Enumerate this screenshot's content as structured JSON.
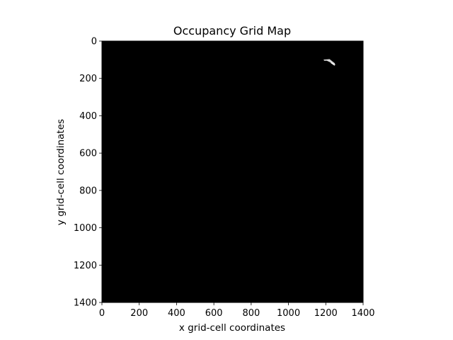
{
  "chart_data": {
    "type": "heatmap",
    "title": "Occupancy Grid Map",
    "xlabel": "x grid-cell coordinates",
    "ylabel": "y grid-cell coordinates",
    "xlim": [
      0,
      1400
    ],
    "ylim": [
      1400,
      0
    ],
    "y_axis_inverted": true,
    "x_ticks": [
      "0",
      "200",
      "400",
      "600",
      "800",
      "1000",
      "1200",
      "1400"
    ],
    "y_ticks": [
      "0",
      "200",
      "400",
      "600",
      "800",
      "1000",
      "1200",
      "1400"
    ],
    "background_value": "unexplored / occupied (black)",
    "grid": false,
    "colormap": "gray",
    "colors": {
      "background": "#000000",
      "free_space": "#d9d9d9",
      "free_space_bright": "#ffffff"
    },
    "features": [
      {
        "kind": "free-space",
        "points": [
          [
            1190,
            100
          ],
          [
            1220,
            98
          ],
          [
            1235,
            110
          ],
          [
            1248,
            120
          ],
          [
            1243,
            126
          ],
          [
            1222,
            112
          ],
          [
            1205,
            104
          ],
          [
            1192,
            104
          ]
        ]
      },
      {
        "kind": "free-space",
        "points": [
          [
            1230,
            112
          ],
          [
            1250,
            126
          ],
          [
            1246,
            130
          ],
          [
            1228,
            118
          ]
        ]
      }
    ]
  }
}
